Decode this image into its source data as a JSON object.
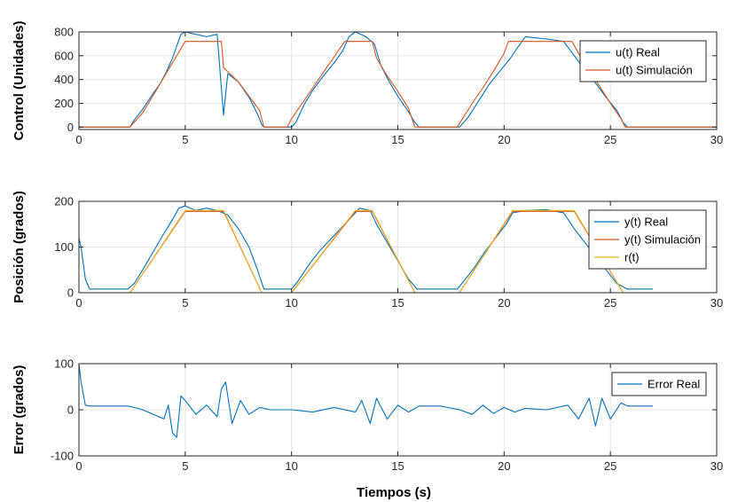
{
  "figure": {
    "xlabel": "Tiempos (s)"
  },
  "colors": {
    "blue": "#0072BD",
    "orange": "#D95319",
    "yellow": "#EDB120",
    "grid": "#e4e4e4",
    "axis": "#262626"
  },
  "chart_data": [
    {
      "type": "line",
      "ylabel": "Control (Unidades)",
      "xlim": [
        0,
        30
      ],
      "ylim": [
        -20,
        800
      ],
      "xticks": [
        0,
        5,
        10,
        15,
        20,
        25,
        30
      ],
      "yticks": [
        0,
        200,
        400,
        600,
        800
      ],
      "grid": true,
      "legend_position": "top-right",
      "series": [
        {
          "name": "u(t) Real",
          "color": "#0072BD",
          "x": [
            0,
            2.4,
            2.6,
            3.0,
            3.4,
            3.8,
            4.1,
            4.4,
            4.6,
            4.8,
            5.0,
            5.5,
            6.0,
            6.5,
            6.8,
            7.0,
            7.5,
            8.0,
            8.4,
            8.6,
            8.7,
            10.0,
            10.2,
            10.6,
            11.0,
            11.5,
            12.0,
            12.4,
            12.7,
            13.0,
            13.5,
            13.9,
            14.2,
            14.6,
            15.0,
            15.5,
            15.8,
            16.0,
            17.0,
            17.9,
            18.3,
            18.8,
            19.3,
            19.8,
            20.3,
            20.6,
            21.0,
            22.0,
            22.8,
            23.3,
            23.8,
            24.3,
            24.8,
            25.3,
            25.6,
            25.8,
            30
          ],
          "y": [
            0,
            0,
            60,
            150,
            260,
            360,
            460,
            580,
            680,
            780,
            800,
            780,
            760,
            780,
            100,
            450,
            380,
            250,
            110,
            20,
            0,
            0,
            40,
            190,
            310,
            430,
            540,
            640,
            760,
            800,
            760,
            700,
            520,
            380,
            260,
            130,
            40,
            0,
            0,
            0,
            80,
            220,
            360,
            470,
            580,
            660,
            760,
            740,
            720,
            600,
            480,
            370,
            250,
            140,
            40,
            0,
            0
          ]
        },
        {
          "name": "u(t) Simulación",
          "color": "#D95319",
          "x": [
            0,
            2.4,
            3.0,
            3.5,
            4.0,
            4.5,
            5.0,
            6.7,
            6.8,
            7.5,
            8.0,
            8.5,
            8.7,
            9.8,
            10.0,
            10.5,
            11.0,
            11.5,
            12.0,
            12.5,
            13.8,
            14.0,
            14.5,
            15.0,
            15.5,
            15.8,
            17.8,
            18.0,
            18.5,
            19.0,
            19.5,
            20.0,
            20.2,
            23.2,
            23.5,
            24.0,
            24.5,
            25.0,
            25.5,
            25.7,
            30
          ],
          "y": [
            0,
            0,
            120,
            270,
            420,
            570,
            720,
            720,
            500,
            380,
            260,
            140,
            0,
            0,
            70,
            200,
            330,
            460,
            590,
            720,
            720,
            580,
            430,
            300,
            160,
            0,
            0,
            60,
            200,
            330,
            470,
            620,
            720,
            720,
            620,
            480,
            340,
            200,
            70,
            0,
            0
          ]
        }
      ]
    },
    {
      "type": "line",
      "ylabel": "Posición (grados)",
      "xlim": [
        0,
        30
      ],
      "ylim": [
        0,
        200
      ],
      "xticks": [
        0,
        5,
        10,
        15,
        20,
        25,
        30
      ],
      "yticks": [
        0,
        100,
        200
      ],
      "grid": true,
      "legend_position": "top-right",
      "series": [
        {
          "name": "y(t) Real",
          "color": "#0072BD",
          "x": [
            0,
            0.1,
            0.3,
            0.5,
            2.3,
            2.6,
            3.0,
            3.5,
            4.0,
            4.4,
            4.7,
            5.0,
            5.5,
            6.0,
            6.5,
            7.0,
            7.5,
            8.0,
            8.4,
            8.7,
            10.0,
            10.3,
            10.8,
            11.3,
            11.8,
            12.3,
            12.8,
            13.2,
            13.7,
            14.0,
            14.5,
            15.0,
            15.5,
            15.9,
            17.8,
            18.1,
            18.6,
            19.1,
            19.6,
            20.1,
            20.4,
            21.0,
            22.0,
            22.8,
            23.3,
            23.8,
            24.3,
            24.8,
            25.3,
            25.8,
            27.0
          ],
          "y": [
            120,
            100,
            30,
            8,
            8,
            20,
            50,
            90,
            130,
            160,
            185,
            190,
            180,
            185,
            180,
            170,
            140,
            100,
            50,
            8,
            8,
            25,
            60,
            90,
            115,
            140,
            165,
            185,
            180,
            150,
            110,
            70,
            30,
            8,
            8,
            25,
            55,
            90,
            120,
            150,
            175,
            180,
            182,
            175,
            140,
            110,
            80,
            50,
            20,
            8,
            8
          ]
        },
        {
          "name": "y(t) Simulación",
          "color": "#D95319",
          "x": [
            0,
            2.4,
            5.0,
            6.8,
            8.6,
            10.0,
            13.0,
            13.8,
            15.8,
            17.9,
            20.4,
            23.3,
            25.6,
            30
          ],
          "y": [
            0,
            0,
            178,
            178,
            0,
            0,
            178,
            178,
            0,
            0,
            178,
            178,
            0,
            0
          ]
        },
        {
          "name": "r(t)",
          "color": "#EDB120",
          "x": [
            0,
            2.4,
            5.0,
            6.8,
            8.6,
            10.0,
            13.0,
            13.8,
            15.8,
            17.9,
            20.4,
            23.3,
            25.6,
            30
          ],
          "y": [
            0,
            0,
            180,
            180,
            0,
            0,
            180,
            180,
            0,
            0,
            180,
            180,
            0,
            0
          ]
        }
      ]
    },
    {
      "type": "line",
      "ylabel": "Error (grados)",
      "xlim": [
        0,
        30
      ],
      "ylim": [
        -100,
        100
      ],
      "xticks": [
        0,
        5,
        10,
        15,
        20,
        25,
        30
      ],
      "yticks": [
        -100,
        0,
        100
      ],
      "grid": true,
      "legend_position": "top-right",
      "series": [
        {
          "name": "Error Real",
          "color": "#0072BD",
          "x": [
            0,
            0.1,
            0.3,
            0.5,
            2.3,
            2.6,
            3.0,
            3.5,
            4.0,
            4.2,
            4.4,
            4.6,
            4.8,
            5.0,
            5.5,
            6.0,
            6.5,
            6.7,
            6.9,
            7.2,
            7.6,
            8.0,
            8.5,
            9.0,
            10.0,
            11.0,
            12.0,
            13.0,
            13.3,
            13.7,
            14.0,
            14.5,
            15.0,
            15.5,
            16.0,
            17.0,
            17.9,
            18.5,
            19.0,
            19.5,
            20.0,
            20.5,
            21.0,
            22.0,
            23.0,
            23.5,
            24.0,
            24.3,
            24.6,
            25.0,
            25.5,
            25.8,
            27.0
          ],
          "y": [
            100,
            60,
            10,
            8,
            8,
            5,
            0,
            -10,
            -20,
            10,
            -50,
            -60,
            30,
            20,
            -10,
            10,
            -15,
            45,
            60,
            -30,
            20,
            -10,
            5,
            0,
            0,
            -5,
            5,
            -5,
            20,
            -30,
            25,
            -20,
            10,
            -5,
            8,
            8,
            0,
            -10,
            10,
            -8,
            5,
            -5,
            3,
            0,
            10,
            -20,
            25,
            -35,
            25,
            -20,
            15,
            8,
            8
          ]
        }
      ]
    }
  ]
}
